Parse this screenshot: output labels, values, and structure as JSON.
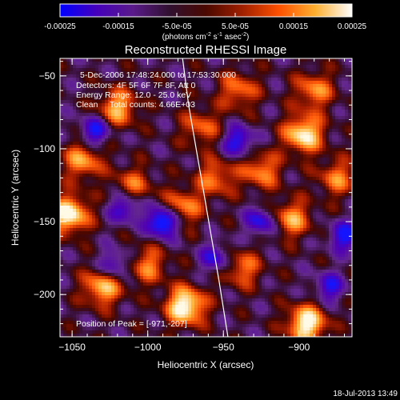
{
  "colorbar": {
    "ticks": [
      {
        "value": -0.00025,
        "label": "-0.00025"
      },
      {
        "value": -0.00015,
        "label": "-0.00015"
      },
      {
        "value": -5e-05,
        "label": "-5.0e-05"
      },
      {
        "value": 5e-05,
        "label": "5.0e-05"
      },
      {
        "value": 0.00015,
        "label": "0.00015"
      },
      {
        "value": 0.00025,
        "label": "0.00025"
      }
    ],
    "range": [
      -0.00025,
      0.00025
    ],
    "unit_prefix": "(photons cm",
    "unit_exp1": "-2",
    "unit_mid": " s",
    "unit_exp2": "-1",
    "unit_mid2": " asec",
    "unit_exp3": "-2",
    "unit_suffix": ")",
    "colors": [
      "#0000ff",
      "#4400bb",
      "#5a1a8a",
      "#301030",
      "#4a0800",
      "#a02000",
      "#ff5000",
      "#ffb030",
      "#ffffff"
    ]
  },
  "chart_data": {
    "type": "heatmap",
    "title": "Reconstructed RHESSI Image",
    "xlabel": "Heliocentric X (arcsec)",
    "ylabel": "Heliocentric Y (arcsec)",
    "xlim": [
      -1058,
      -865
    ],
    "ylim": [
      -229,
      -38
    ],
    "xticks": [
      {
        "value": -1050,
        "label": "−1050"
      },
      {
        "value": -1000,
        "label": "−1000"
      },
      {
        "value": -950,
        "label": "−950"
      },
      {
        "value": -900,
        "label": "−900"
      }
    ],
    "yticks": [
      {
        "value": -50,
        "label": "−50"
      },
      {
        "value": -100,
        "label": "−100"
      },
      {
        "value": -150,
        "label": "−150"
      },
      {
        "value": -200,
        "label": "−200"
      }
    ],
    "annotations": [
      "5-Dec-2006 17:48:24.000 to 17:53:30.000",
      "Detectors: 4F 5F 6F 7F 8F, Att 0",
      "Energy Range: 12.0 - 25.0 keV",
      "Clean     Total counts: 4.66E+03"
    ],
    "peak_label": "Position of Peak = [-971,-207]",
    "peak": [
      -971,
      -207
    ],
    "limb_curve": [
      [
        -977,
        -38
      ],
      [
        -973,
        -70
      ],
      [
        -968,
        -100
      ],
      [
        -963,
        -130
      ],
      [
        -958,
        -160
      ],
      [
        -953,
        -190
      ],
      [
        -947,
        -229
      ]
    ],
    "hot_spots": [
      {
        "x": -1052,
        "y": -145,
        "v": 0.9
      },
      {
        "x": -1043,
        "y": -108,
        "v": 0.6
      },
      {
        "x": -1020,
        "y": -72,
        "v": 0.65
      },
      {
        "x": -1030,
        "y": -195,
        "v": 0.7
      },
      {
        "x": -1000,
        "y": -180,
        "v": 0.5
      },
      {
        "x": -975,
        "y": -208,
        "v": 0.95
      },
      {
        "x": -977,
        "y": -140,
        "v": 0.55
      },
      {
        "x": -955,
        "y": -120,
        "v": 0.5
      },
      {
        "x": -940,
        "y": -60,
        "v": 0.5
      },
      {
        "x": -938,
        "y": -182,
        "v": 0.5
      },
      {
        "x": -925,
        "y": -115,
        "v": 0.55
      },
      {
        "x": -897,
        "y": -90,
        "v": 0.85
      },
      {
        "x": -905,
        "y": -148,
        "v": 0.6
      },
      {
        "x": -890,
        "y": -60,
        "v": 0.55
      },
      {
        "x": -895,
        "y": -220,
        "v": 0.9
      },
      {
        "x": -875,
        "y": -120,
        "v": 0.5
      },
      {
        "x": -1010,
        "y": -125,
        "v": 0.45
      },
      {
        "x": -965,
        "y": -85,
        "v": 0.45
      }
    ],
    "cold_spots": [
      {
        "x": -990,
        "y": -150,
        "v": 0.9
      },
      {
        "x": -1035,
        "y": -88,
        "v": 0.6
      },
      {
        "x": -1015,
        "y": -140,
        "v": 0.55
      },
      {
        "x": -1022,
        "y": -180,
        "v": 0.5
      },
      {
        "x": -940,
        "y": -95,
        "v": 0.6
      },
      {
        "x": -925,
        "y": -150,
        "v": 0.55
      },
      {
        "x": -870,
        "y": -160,
        "v": 0.6
      },
      {
        "x": -955,
        "y": -175,
        "v": 0.5
      },
      {
        "x": -880,
        "y": -195,
        "v": 0.5
      }
    ]
  },
  "footer": {
    "timestamp": "18-Jul-2013 13:49"
  }
}
